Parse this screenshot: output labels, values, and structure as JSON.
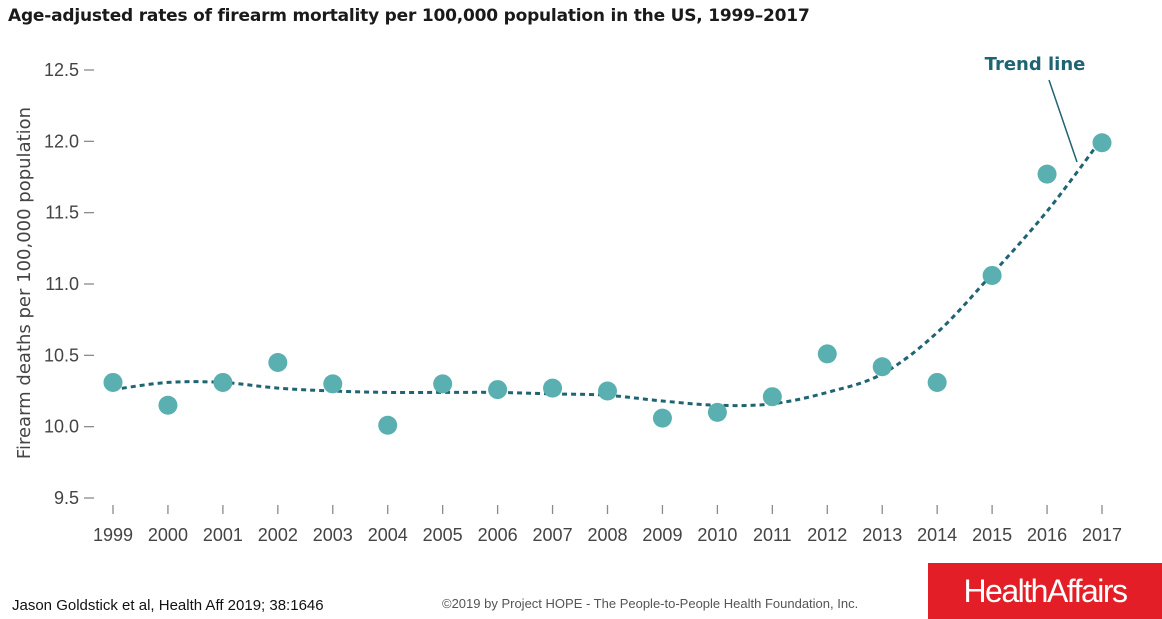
{
  "chart_data": {
    "type": "scatter",
    "title": "Age-adjusted rates of firearm mortality per 100,000 population in the US, 1999–2017",
    "ylabel": "Firearm deaths per 100,000 population",
    "xlabel": "",
    "x": [
      1999,
      2000,
      2001,
      2002,
      2003,
      2004,
      2005,
      2006,
      2007,
      2008,
      2009,
      2010,
      2011,
      2012,
      2013,
      2014,
      2015,
      2016,
      2017
    ],
    "x_tick_labels": [
      "1999",
      "2000",
      "2001",
      "2002",
      "2003",
      "2004",
      "2005",
      "2006",
      "2007",
      "2008",
      "2009",
      "2010",
      "2011",
      "2012",
      "2013",
      "2014",
      "2015",
      "2016",
      "2017"
    ],
    "series": [
      {
        "values": [
          10.31,
          10.15,
          10.31,
          10.45,
          10.3,
          10.01,
          10.3,
          10.26,
          10.27,
          10.25,
          10.06,
          10.1,
          10.21,
          10.51,
          10.42,
          10.31,
          11.06,
          11.77,
          11.99
        ],
        "color": "#5aafb0"
      }
    ],
    "trend_line": {
      "label": "Trend line",
      "color": "#1f6472",
      "style": "dashed",
      "values": [
        10.26,
        10.31,
        10.31,
        10.27,
        10.25,
        10.24,
        10.24,
        10.24,
        10.23,
        10.22,
        10.18,
        10.15,
        10.16,
        10.24,
        10.37,
        10.66,
        11.07,
        11.51,
        12.02
      ]
    },
    "yticks": [
      9.5,
      10.0,
      10.5,
      11.0,
      11.5,
      12.0,
      12.5
    ],
    "ytick_labels": [
      "9.5",
      "10.0",
      "10.5",
      "11.0",
      "11.5",
      "12.0",
      "12.5"
    ],
    "ylim": [
      9.5,
      12.5
    ],
    "grid": false,
    "legend": "none"
  },
  "footer": {
    "citation": "Jason Goldstick et al, Health Aff 2019; 38:1646",
    "copyright": "©2019 by Project HOPE - The People-to-People Health Foundation, Inc.",
    "brand": "HealthAffairs"
  }
}
